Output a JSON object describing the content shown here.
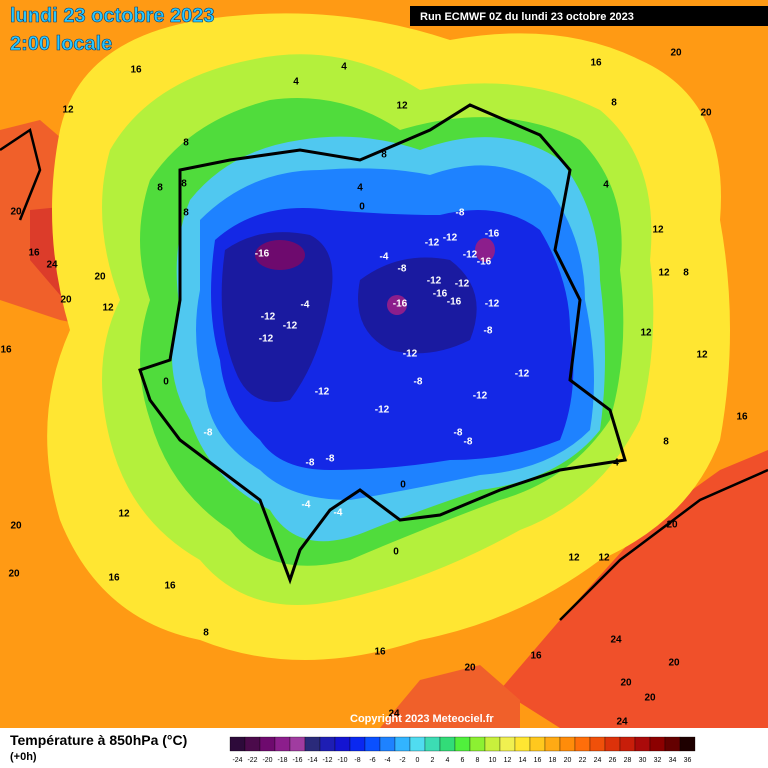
{
  "header": {
    "title": "lundi 23 octobre 2023",
    "subtitle": "2:00 locale",
    "run": "Run ECMWF 0Z du lundi 23 octobre 2023"
  },
  "footer": {
    "variable": "Température à 850hPa (°C)",
    "lead": "(+0h)",
    "copyright": "Copyright 2023 Meteociel.fr"
  },
  "colorbar": {
    "ticks": [
      -24,
      -22,
      -20,
      -18,
      -16,
      -14,
      -12,
      -10,
      -8,
      -6,
      -4,
      -2,
      0,
      2,
      4,
      6,
      8,
      10,
      12,
      14,
      16,
      18,
      20,
      22,
      24,
      26,
      28,
      30,
      32,
      34,
      36
    ],
    "colors": [
      "#2d0a3a",
      "#4b0a4b",
      "#6e0a6e",
      "#8c1e8c",
      "#a03ca0",
      "#2a2a7a",
      "#1e1eb4",
      "#1414d2",
      "#0a28f0",
      "#0a50ff",
      "#1e82ff",
      "#32b4ff",
      "#50dcf0",
      "#3cdcb4",
      "#32dc78",
      "#50f03c",
      "#8cf032",
      "#c8f03c",
      "#f0f050",
      "#ffe632",
      "#ffc81e",
      "#ffaa14",
      "#ff8c0a",
      "#ff6e0a",
      "#f0500a",
      "#dc320a",
      "#c81e0a",
      "#aa0a0a",
      "#8c0000",
      "#640000",
      "#1e0000"
    ]
  },
  "contour_labels": [
    16,
    12,
    4,
    4,
    12,
    8,
    4,
    0,
    8,
    8,
    8,
    8,
    16,
    20,
    20,
    8,
    4,
    12,
    12,
    8,
    12,
    12,
    16,
    8,
    4,
    20,
    20,
    20,
    20,
    24,
    24,
    12,
    12,
    16,
    20,
    24,
    16,
    8,
    16,
    12,
    16,
    20,
    20,
    16,
    20,
    16,
    24,
    20,
    20,
    12,
    -16,
    -12,
    -12,
    -12,
    -4,
    -12,
    -8,
    -8,
    -8,
    -4,
    -4,
    0,
    0,
    -12,
    -8,
    -12,
    -16,
    -12,
    -16,
    -16,
    -12,
    -12,
    -16,
    -16,
    -12,
    -8,
    -12,
    -12,
    -8,
    -8,
    -8,
    -12,
    -12,
    -8,
    -4,
    0
  ]
}
